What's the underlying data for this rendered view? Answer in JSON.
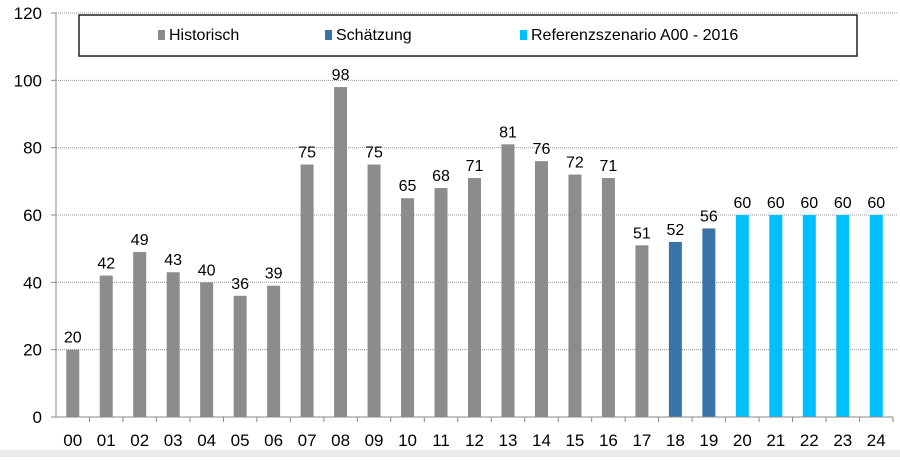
{
  "chart_data": {
    "type": "bar",
    "categories": [
      "00",
      "01",
      "02",
      "03",
      "04",
      "05",
      "06",
      "07",
      "08",
      "09",
      "10",
      "11",
      "12",
      "13",
      "14",
      "15",
      "16",
      "17",
      "18",
      "19",
      "20",
      "21",
      "22",
      "23",
      "24"
    ],
    "values": [
      20,
      42,
      49,
      43,
      40,
      36,
      39,
      75,
      98,
      75,
      65,
      68,
      71,
      81,
      76,
      72,
      71,
      51,
      52,
      56,
      60,
      60,
      60,
      60,
      60
    ],
    "series_assignment": [
      "Historisch",
      "Historisch",
      "Historisch",
      "Historisch",
      "Historisch",
      "Historisch",
      "Historisch",
      "Historisch",
      "Historisch",
      "Historisch",
      "Historisch",
      "Historisch",
      "Historisch",
      "Historisch",
      "Historisch",
      "Historisch",
      "Historisch",
      "Historisch",
      "Schätzung",
      "Schätzung",
      "Referenzszenario A00 - 2016",
      "Referenzszenario A00 - 2016",
      "Referenzszenario A00 - 2016",
      "Referenzszenario A00 - 2016",
      "Referenzszenario A00 - 2016"
    ],
    "series": [
      {
        "name": "Historisch",
        "color": "#8c8c8c"
      },
      {
        "name": "Schätzung",
        "color": "#3a73a6"
      },
      {
        "name": "Referenzszenario A00 - 2016",
        "color": "#00bfff"
      }
    ],
    "yticks": [
      "0",
      "20",
      "40",
      "60",
      "80",
      "100",
      "120"
    ],
    "ylim": [
      0,
      120
    ],
    "grid": true,
    "legend_position": "top",
    "data_labels": true
  }
}
